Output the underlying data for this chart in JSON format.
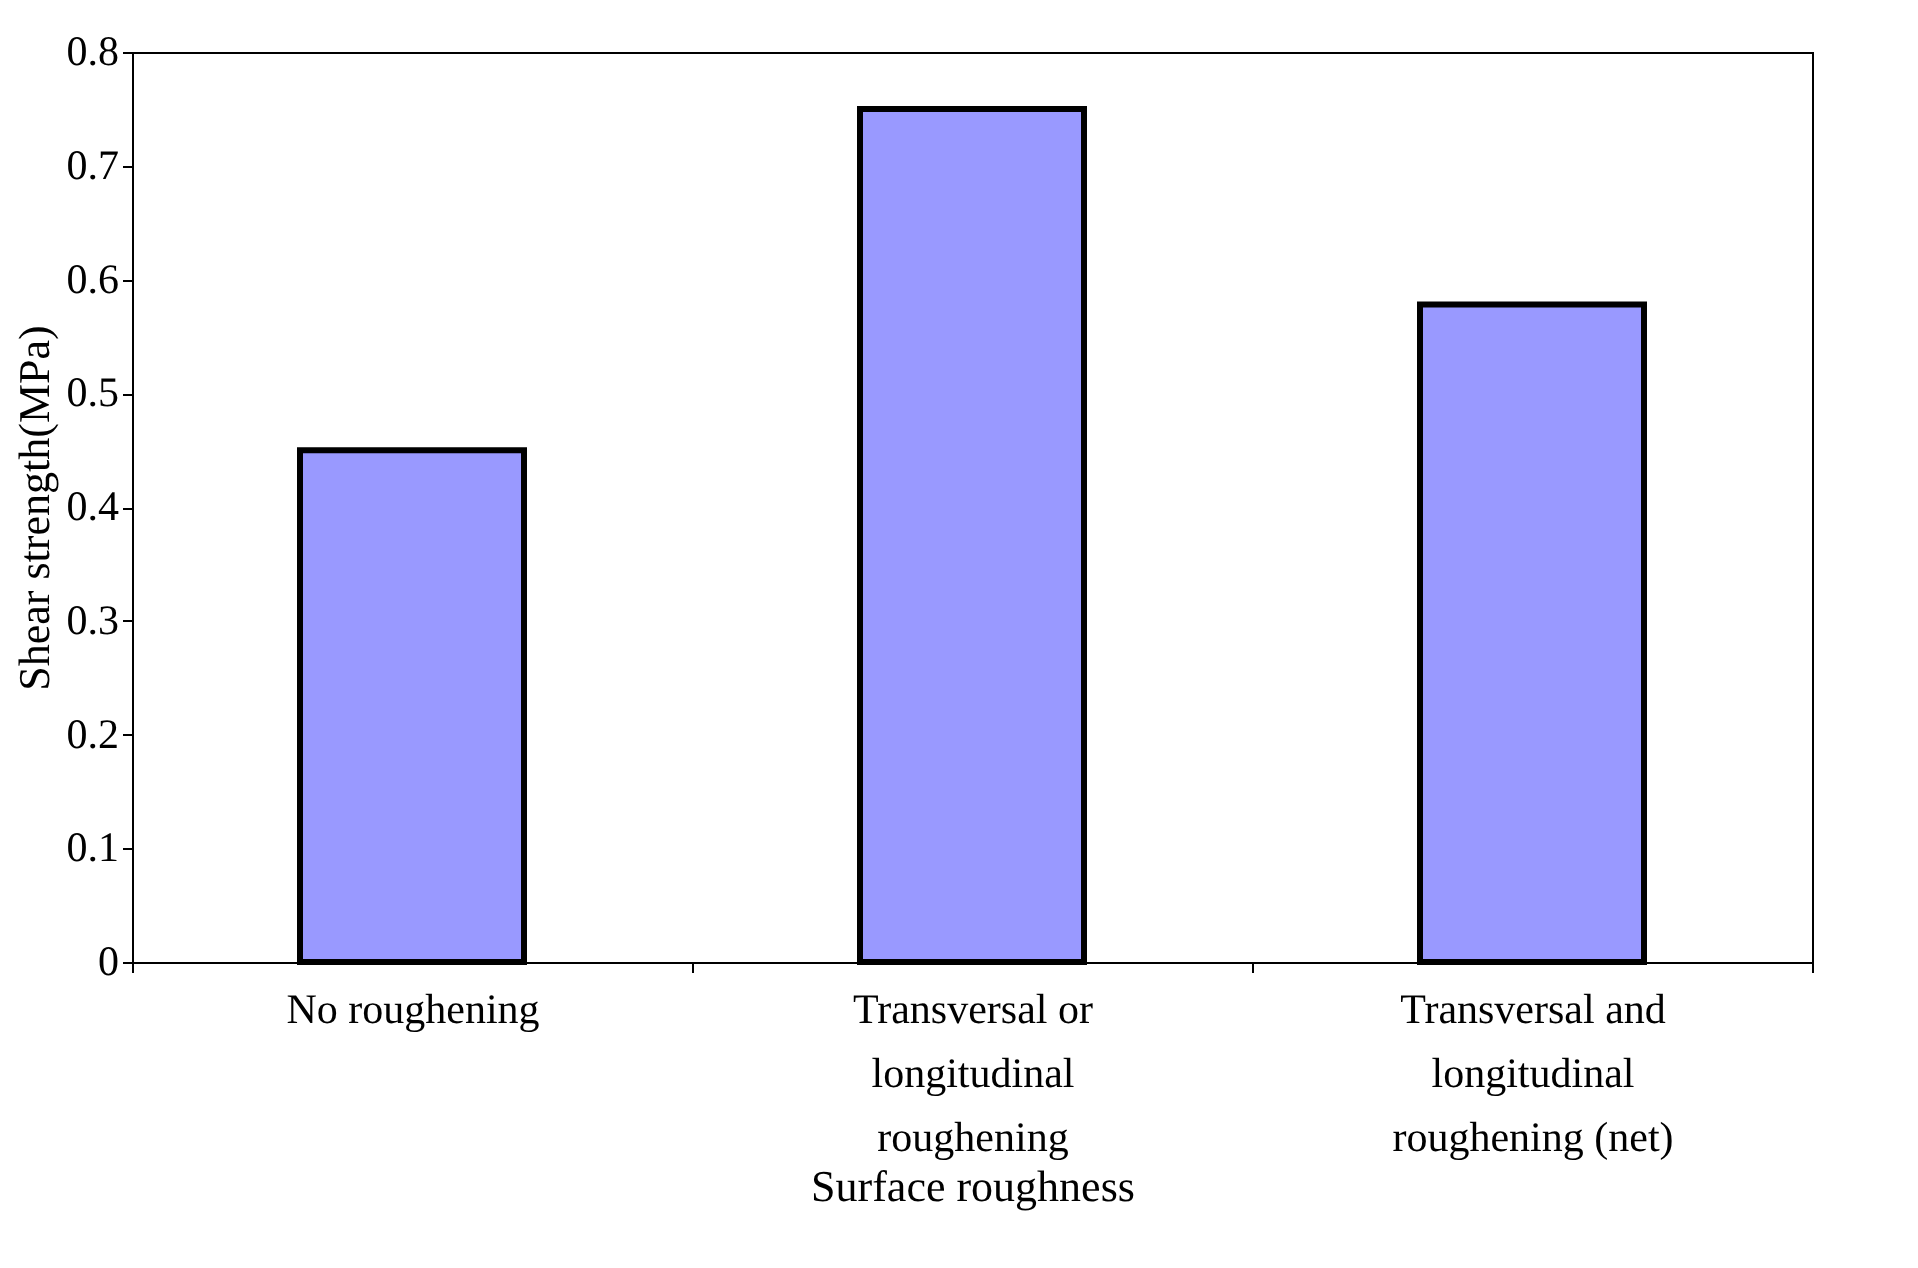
{
  "chart_data": {
    "type": "bar",
    "xlabel": "Surface roughness",
    "ylabel": "Shear strength(MPa)",
    "categories": [
      "No roughening",
      "Transversal or longitudinal roughening",
      "Transversal and longitudinal roughening (net)"
    ],
    "values": [
      0.45,
      0.75,
      0.578
    ],
    "color": "#9999ff",
    "ylim": [
      0,
      0.8
    ],
    "yticks": [
      0,
      0.1,
      0.2,
      0.3,
      0.4,
      0.5,
      0.6,
      0.7,
      0.8
    ],
    "grid": false
  }
}
